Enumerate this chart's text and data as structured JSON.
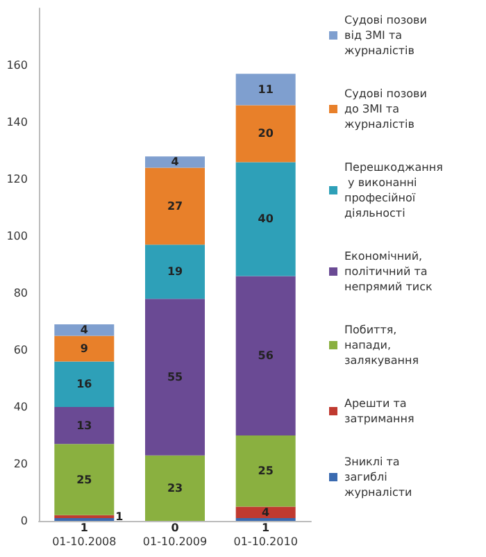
{
  "chart_data": {
    "type": "bar",
    "stacked": true,
    "categories": [
      "01-10.2008",
      "01-10.2009",
      "01-10.2010"
    ],
    "series": [
      {
        "name": "Зниклі та загиблі журналісти",
        "color": "#3a6ab0",
        "values": [
          1,
          0,
          1
        ],
        "value_labels": [
          "1",
          "0",
          "1"
        ]
      },
      {
        "name": "Арешти та затримання",
        "color": "#c03a30",
        "values": [
          1,
          0,
          4
        ],
        "value_labels": [
          "1",
          null,
          "4"
        ]
      },
      {
        "name": "Побиття, напади, залякування",
        "color": "#8ab040",
        "values": [
          25,
          23,
          25
        ],
        "value_labels": [
          "25",
          "23",
          "25"
        ]
      },
      {
        "name": "Економічний, політичний та непрямий тиск",
        "color": "#6a4a94",
        "values": [
          13,
          55,
          56
        ],
        "value_labels": [
          "13",
          "55",
          "56"
        ]
      },
      {
        "name": "Перешкоджання у виконанні професійної діяльності",
        "color": "#2ea0b8",
        "values": [
          16,
          19,
          40
        ],
        "value_labels": [
          "16",
          "19",
          "40"
        ]
      },
      {
        "name": "Судові позови до ЗМІ та журналістів",
        "color": "#e8802a",
        "values": [
          9,
          27,
          20
        ],
        "value_labels": [
          "9",
          "27",
          "20"
        ]
      },
      {
        "name": "Судові позови від ЗМІ та журналістів",
        "color": "#7f9fcf",
        "values": [
          4,
          4,
          11
        ],
        "value_labels": [
          "4",
          "4",
          "11"
        ]
      }
    ],
    "ylim": [
      0,
      180
    ],
    "yticks": [
      0,
      20,
      40,
      60,
      80,
      100,
      120,
      140,
      160
    ],
    "grid": false,
    "legend": "right"
  }
}
